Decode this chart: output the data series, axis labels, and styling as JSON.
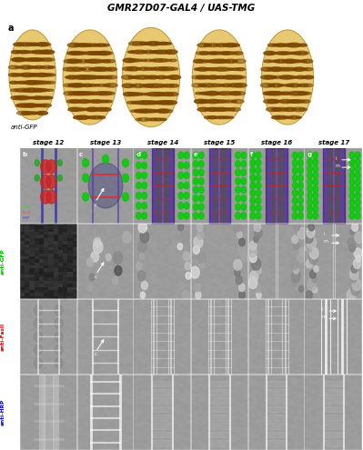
{
  "title": "GMR27D07-GAL4 / UAS-TMG",
  "panel_a_label": "a",
  "panel_a_sublabel": "anti-GFP",
  "panel_a_bg": "#b8d0e0",
  "col_labels": [
    "stage 12",
    "stage 13",
    "stage 14",
    "stage 15",
    "stage 16",
    "stage 17"
  ],
  "panel_letters": [
    "b",
    "c",
    "d",
    "e",
    "f",
    "g"
  ],
  "row_labels": [
    "anti-GFP",
    "anti-FasII",
    "anti-HRP"
  ],
  "row_label_colors": [
    "#00bb00",
    "#cc0000",
    "#0000cc"
  ],
  "legend_labels": [
    "GFP",
    "FasII",
    "HRP"
  ],
  "legend_colors": [
    "#00ff00",
    "#ff4444",
    "#4444ff"
  ],
  "bg_color": "#ffffff",
  "panel_bg": "#080810",
  "embryo_main_color": "#c8860a",
  "embryo_spot_color": "#7a4500",
  "embryo_pale_color": "#e8c870",
  "embryo_bg": "#b8d0e0"
}
